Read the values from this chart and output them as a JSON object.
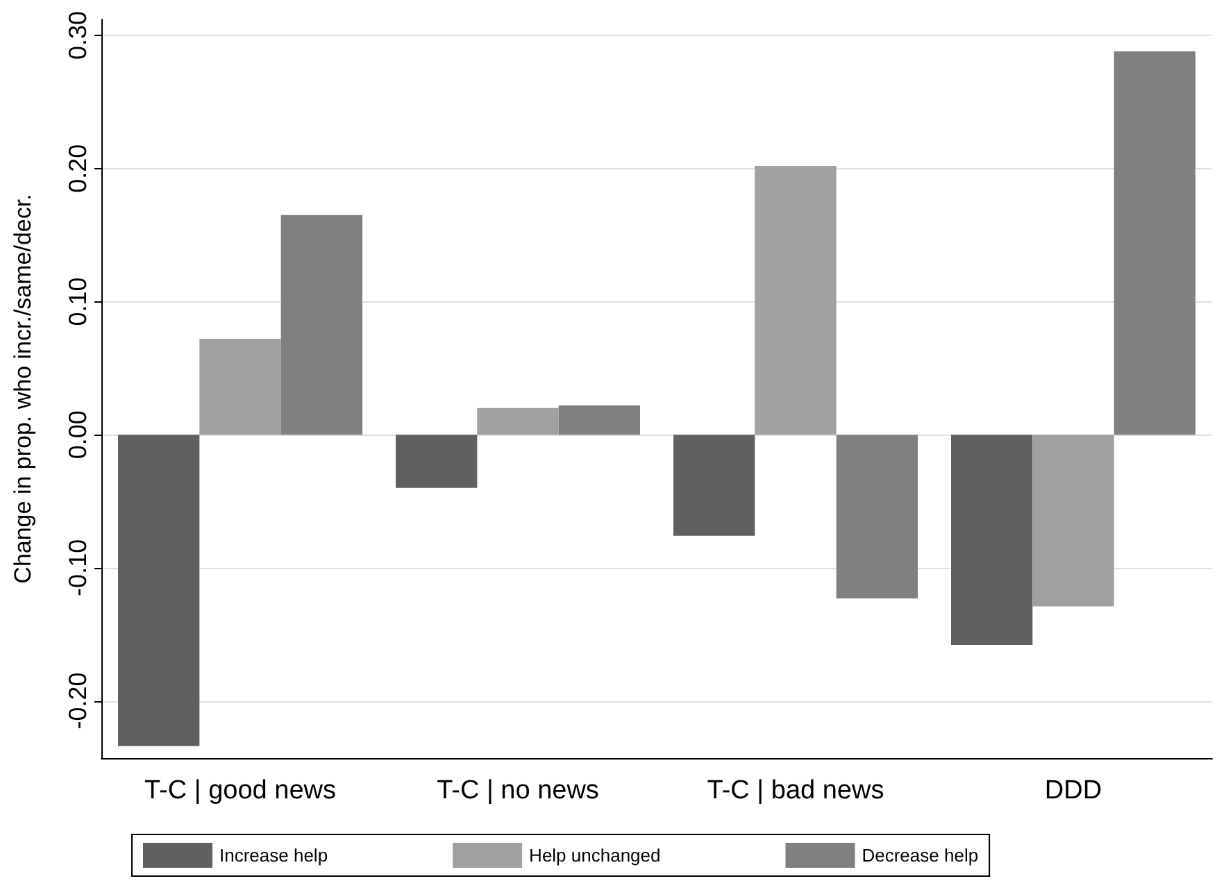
{
  "chart_data": {
    "type": "bar",
    "ylabel": "Change in prop. who incr./same/decr.",
    "categories": [
      "T-C | good news",
      "T-C | no news",
      "T-C | bad news",
      "DDD"
    ],
    "series": [
      {
        "name": "Increase help",
        "color": "#606060",
        "values": [
          -0.234,
          -0.04,
          -0.076,
          -0.158
        ]
      },
      {
        "name": "Help unchanged",
        "color": "#a0a0a0",
        "values": [
          0.072,
          0.02,
          0.202,
          -0.129
        ]
      },
      {
        "name": "Decrease help",
        "color": "#808080",
        "values": [
          0.165,
          0.022,
          -0.123,
          0.288
        ]
      }
    ],
    "ylim": [
      -0.243,
      0.312
    ],
    "yticks": [
      {
        "value": -0.2,
        "label": "-0.20"
      },
      {
        "value": -0.1,
        "label": "-0.10"
      },
      {
        "value": 0,
        "label": "0.00"
      },
      {
        "value": 0.1,
        "label": "0.10"
      },
      {
        "value": 0.2,
        "label": "0.20"
      },
      {
        "value": 0.3,
        "label": "0.30"
      }
    ],
    "grid": "y",
    "legend": "bottom"
  }
}
